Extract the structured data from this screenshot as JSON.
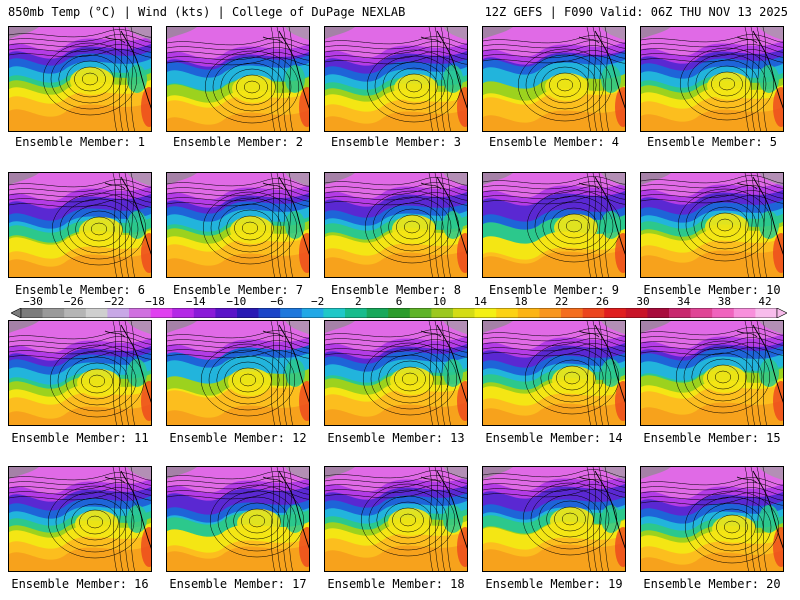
{
  "header": {
    "left": "850mb Temp (°C) | Wind (kts) | College of DuPage NEXLAB",
    "right": "12Z GEFS | F090 Valid: 06Z THU NOV 13 2025"
  },
  "members": [
    "Ensemble Member: 1",
    "Ensemble Member: 2",
    "Ensemble Member: 3",
    "Ensemble Member: 4",
    "Ensemble Member: 5",
    "Ensemble Member: 6",
    "Ensemble Member: 7",
    "Ensemble Member: 8",
    "Ensemble Member: 9",
    "Ensemble Member: 10",
    "Ensemble Member: 11",
    "Ensemble Member: 12",
    "Ensemble Member: 13",
    "Ensemble Member: 14",
    "Ensemble Member: 15",
    "Ensemble Member: 16",
    "Ensemble Member: 17",
    "Ensemble Member: 18",
    "Ensemble Member: 19",
    "Ensemble Member: 20"
  ],
  "colorbar": {
    "labels": [
      "−30",
      "−26",
      "−22",
      "−18",
      "−14",
      "−10",
      "−6",
      "−2",
      "2",
      "6",
      "10",
      "14",
      "18",
      "22",
      "26",
      "30",
      "34",
      "38",
      "42"
    ],
    "colors": [
      "#7c7c7c",
      "#9a9a9a",
      "#b5b5b5",
      "#cfcfcf",
      "#c8a8e6",
      "#d070e0",
      "#e040f0",
      "#b428e6",
      "#8a1ad8",
      "#5a14c8",
      "#2a1ab4",
      "#1c46c8",
      "#1e78dc",
      "#22a8e6",
      "#20c8c8",
      "#18bc8c",
      "#18a85a",
      "#2c9c2c",
      "#60b428",
      "#9cc81e",
      "#d4dc14",
      "#f4f014",
      "#fcd214",
      "#fcb414",
      "#f8961e",
      "#f46e1e",
      "#ec461e",
      "#e01e1e",
      "#c81428",
      "#a80c3c",
      "#c8286e",
      "#e04696",
      "#f064be",
      "#f890dc",
      "#f8bcec"
    ]
  }
}
